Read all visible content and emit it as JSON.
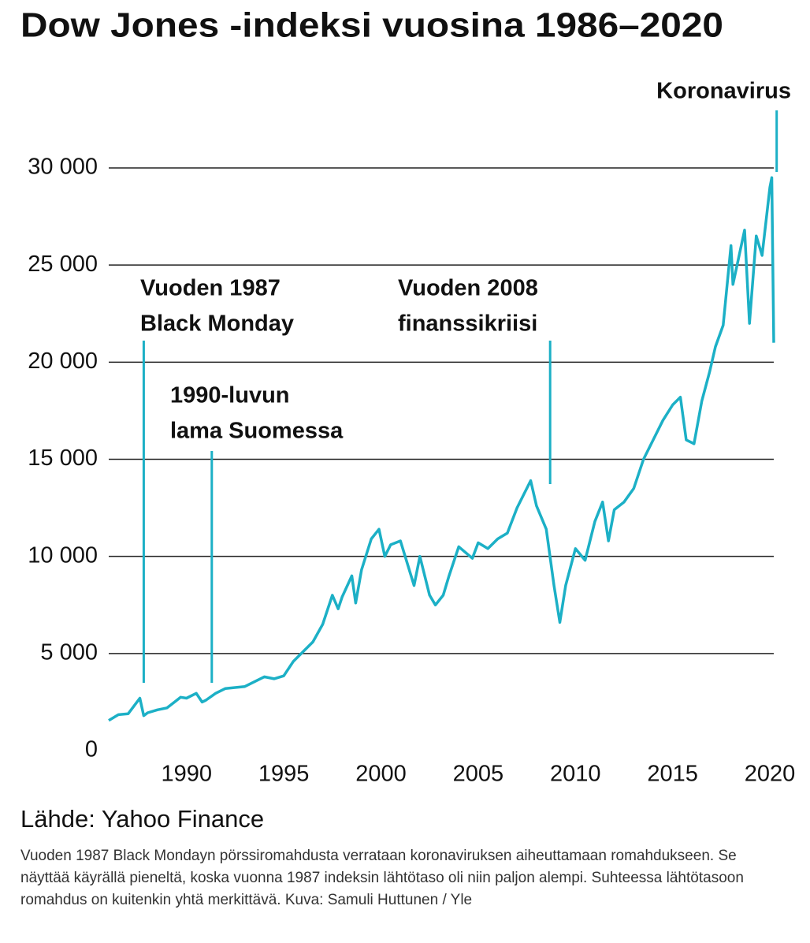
{
  "chart_data": {
    "type": "line",
    "title": "Dow Jones -indeksi vuosina 1986–2020",
    "color": "#1cb0c6",
    "x": [
      1986.0,
      1986.5,
      1987.0,
      1987.6,
      1987.8,
      1988.0,
      1988.5,
      1989.0,
      1989.7,
      1990.0,
      1990.5,
      1990.8,
      1991.0,
      1991.5,
      1992.0,
      1993.0,
      1994.0,
      1994.5,
      1995.0,
      1995.5,
      1996.0,
      1996.5,
      1997.0,
      1997.5,
      1997.8,
      1998.0,
      1998.5,
      1998.7,
      1999.0,
      1999.5,
      1999.9,
      2000.2,
      2000.5,
      2001.0,
      2001.7,
      2002.0,
      2002.5,
      2002.8,
      2003.2,
      2003.5,
      2004.0,
      2004.7,
      2005.0,
      2005.5,
      2006.0,
      2006.5,
      2007.0,
      2007.7,
      2008.0,
      2008.5,
      2008.9,
      2009.2,
      2009.5,
      2010.0,
      2010.5,
      2011.0,
      2011.4,
      2011.7,
      2012.0,
      2012.5,
      2013.0,
      2013.5,
      2014.0,
      2014.5,
      2015.0,
      2015.4,
      2015.7,
      2016.1,
      2016.5,
      2016.9,
      2017.2,
      2017.6,
      2018.0,
      2018.1,
      2018.7,
      2018.95,
      2019.3,
      2019.6,
      2020.0,
      2020.1,
      2020.2
    ],
    "values": [
      1550,
      1850,
      1900,
      2700,
      1800,
      1950,
      2100,
      2200,
      2750,
      2700,
      2950,
      2500,
      2600,
      2950,
      3200,
      3300,
      3800,
      3700,
      3850,
      4600,
      5100,
      5600,
      6500,
      8000,
      7300,
      7900,
      9000,
      7600,
      9300,
      10900,
      11400,
      10000,
      10600,
      10800,
      8500,
      10000,
      8000,
      7500,
      8000,
      9000,
      10500,
      9900,
      10700,
      10400,
      10900,
      11200,
      12500,
      13900,
      12600,
      11400,
      8500,
      6600,
      8500,
      10400,
      9800,
      11800,
      12800,
      10800,
      12400,
      12800,
      13500,
      15000,
      16000,
      17000,
      17800,
      18200,
      16000,
      15800,
      18000,
      19500,
      20800,
      21900,
      26000,
      24000,
      26800,
      22000,
      26500,
      25500,
      29000,
      29500,
      21000
    ],
    "xlim": [
      1986,
      2020.2
    ],
    "xticks": [
      1990,
      1995,
      2000,
      2005,
      2010,
      2015,
      2020
    ],
    "ylim": [
      0,
      30000
    ],
    "yticks": [
      0,
      {
        "value": 5000,
        "label": "5 000"
      },
      {
        "value": 10000,
        "label": "10 000"
      },
      {
        "value": 15000,
        "label": "15 000"
      },
      {
        "value": 20000,
        "label": "20 000"
      },
      {
        "value": 25000,
        "label": "25 000"
      },
      {
        "value": 30000,
        "label": "30 000"
      }
    ],
    "grid": true,
    "annotations": [
      {
        "lines": [
          "Vuoden 1987",
          "Black Monday"
        ],
        "x": 1987.8
      },
      {
        "lines": [
          "1990-luvun",
          "lama Suomessa"
        ],
        "x": 1991.3
      },
      {
        "lines": [
          "Vuoden 2008",
          "finanssikriisi"
        ],
        "x": 2008.7
      },
      {
        "lines": [
          "Koronavirus"
        ],
        "x": 2020.35
      }
    ],
    "source": "Lähde: Yahoo Finance"
  },
  "caption": "Vuoden 1987 Black Mondayn pörssiromahdusta verrataan koronaviruksen aiheuttamaan romahdukseen. Se näyttää käyrällä pieneltä, koska vuonna 1987 indeksin lähtötaso oli niin paljon alempi. Suhteessa lähtötasoon romahdus on kuitenkin yhtä merkittävä.  Kuva: Samuli Huttunen / Yle"
}
